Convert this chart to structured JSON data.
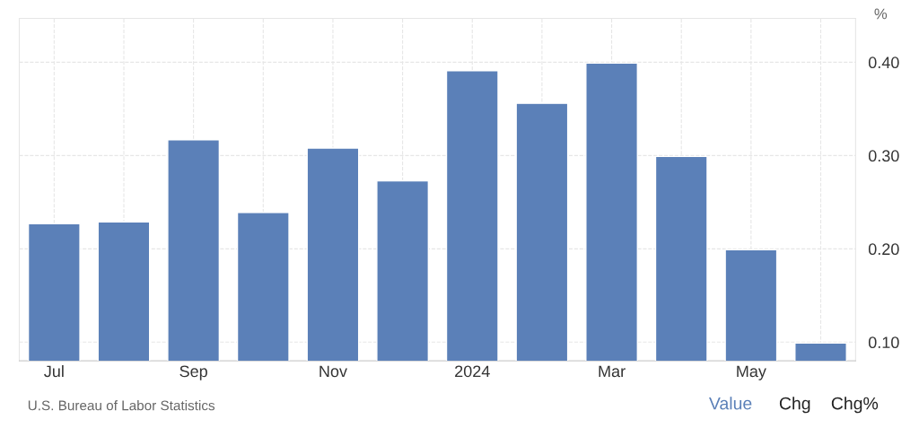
{
  "chart_data": {
    "type": "bar",
    "ylabel": "%",
    "categories": [
      "Jul",
      null,
      "Sep",
      null,
      "Nov",
      null,
      "2024",
      null,
      "Mar",
      null,
      "May",
      null
    ],
    "values": [
      0.227,
      0.229,
      0.317,
      0.239,
      0.308,
      0.273,
      0.391,
      0.356,
      0.399,
      0.299,
      0.199,
      0.099
    ],
    "color": "#5b80b8",
    "ylim": [
      0.08,
      0.447
    ],
    "yticks": [
      {
        "value": 0.1,
        "label": "0.10"
      },
      {
        "value": 0.2,
        "label": "0.20"
      },
      {
        "value": 0.3,
        "label": "0.30"
      },
      {
        "value": 0.4,
        "label": "0.40"
      }
    ],
    "grid": true,
    "annotations": [
      "U.S. Bureau of Labor Statistics",
      "Value",
      "Chg",
      "Chg%"
    ]
  }
}
